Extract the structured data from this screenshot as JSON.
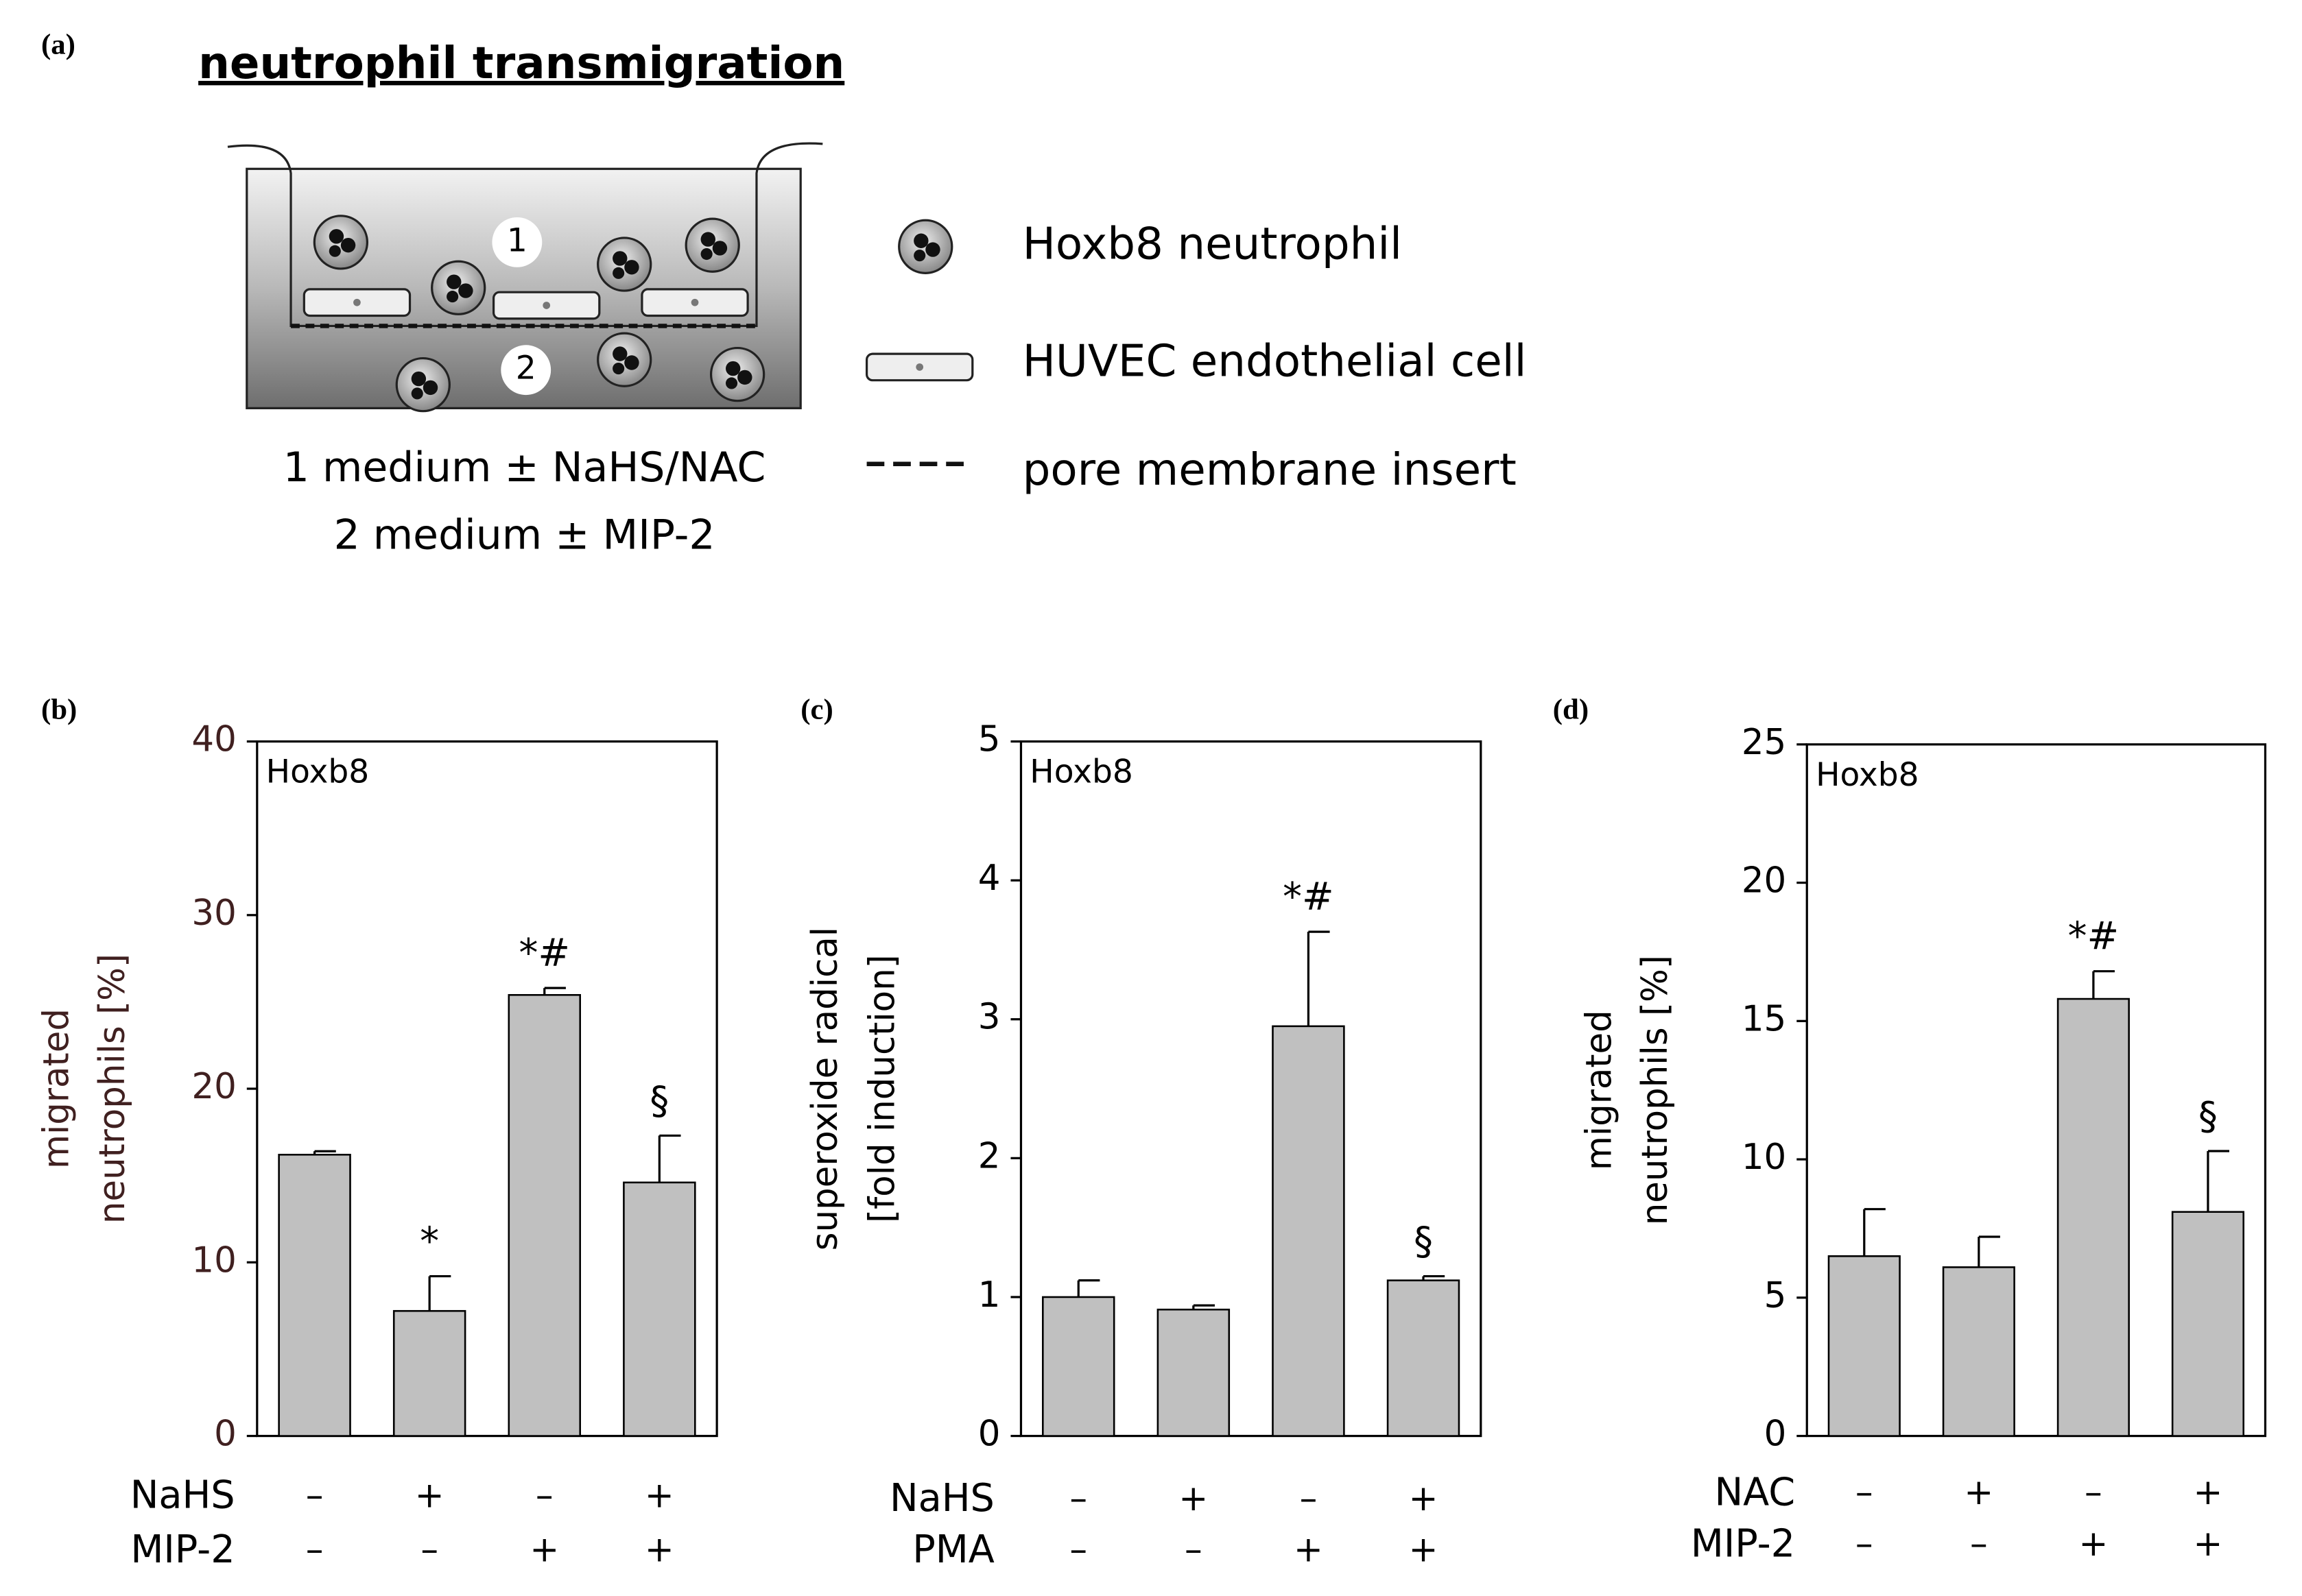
{
  "panel_a": {
    "label": "(a)",
    "title": "neutrophil transmigration",
    "compartments": [
      "1",
      "2"
    ],
    "captions": [
      "1 medium ± NaHS/NAC",
      "2 medium ± MIP-2"
    ],
    "legend": [
      "Hoxb8 neutrophil",
      "HUVEC endothelial cell",
      "pore membrane insert"
    ]
  },
  "chart_data": [
    {
      "type": "bar",
      "panel_label": "(b)",
      "inset_label": "Hoxb8",
      "ylabel": [
        "migrated",
        "neutrophils [%]"
      ],
      "ylim": [
        0,
        40
      ],
      "yticks": [
        0,
        10,
        20,
        30,
        40
      ],
      "color": "#c0c0c0",
      "values": [
        16.2,
        7.2,
        25.4,
        14.6
      ],
      "errors": [
        0.2,
        2.0,
        0.4,
        2.7
      ],
      "annotations": [
        null,
        "*",
        "*#",
        "§"
      ],
      "condition_rows": [
        {
          "name": "NaHS",
          "values": [
            "–",
            "+",
            "–",
            "+"
          ]
        },
        {
          "name": "MIP-2",
          "values": [
            "–",
            "–",
            "+",
            "+"
          ]
        }
      ]
    },
    {
      "type": "bar",
      "panel_label": "(c)",
      "inset_label": "Hoxb8",
      "ylabel": [
        "superoxide radical",
        "[fold induction]"
      ],
      "ylim": [
        0,
        5
      ],
      "yticks": [
        0,
        1,
        2,
        3,
        4,
        5
      ],
      "color": "#c0c0c0",
      "values": [
        1.0,
        0.91,
        2.95,
        1.12
      ],
      "errors": [
        0.12,
        0.03,
        0.68,
        0.03
      ],
      "annotations": [
        null,
        null,
        "*#",
        "§"
      ],
      "condition_rows": [
        {
          "name": "NaHS",
          "values": [
            "–",
            "+",
            "–",
            "+"
          ]
        },
        {
          "name": "PMA",
          "values": [
            "–",
            "–",
            "+",
            "+"
          ]
        }
      ]
    },
    {
      "type": "bar",
      "panel_label": "(d)",
      "inset_label": "Hoxb8",
      "ylabel": [
        "migrated",
        "neutrophils [%]"
      ],
      "ylim": [
        0,
        25
      ],
      "yticks": [
        0,
        5,
        10,
        15,
        20,
        25
      ],
      "color": "#c0c0c0",
      "values": [
        6.5,
        6.1,
        15.8,
        8.1
      ],
      "errors": [
        1.7,
        1.1,
        1.0,
        2.2
      ],
      "annotations": [
        null,
        null,
        "*#",
        "§"
      ],
      "condition_rows": [
        {
          "name": "NAC",
          "values": [
            "–",
            "+",
            "–",
            "+"
          ]
        },
        {
          "name": "MIP-2",
          "values": [
            "–",
            "–",
            "+",
            "+"
          ]
        }
      ]
    }
  ]
}
